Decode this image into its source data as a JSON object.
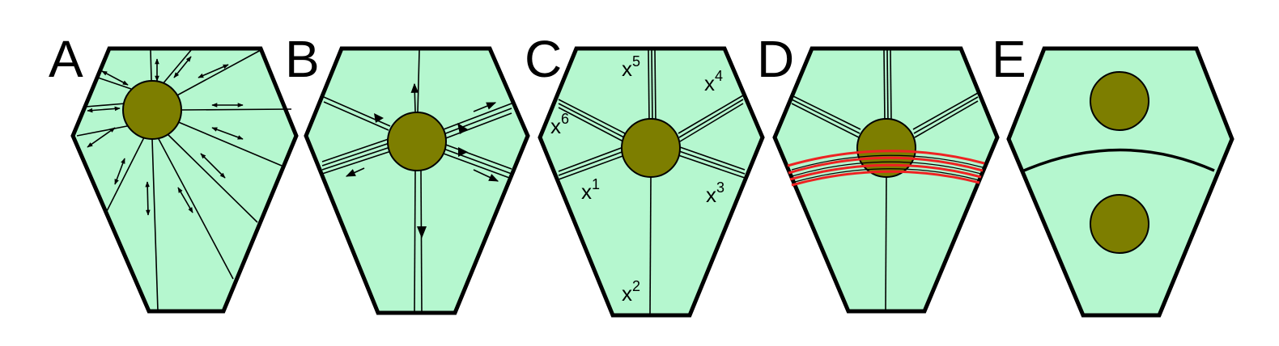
{
  "colors": {
    "cell_fill": "#b5f7cf",
    "nucleus_fill": "#7d7e00",
    "outline": "#000000",
    "preprophase_band": "#ee2222"
  },
  "panels": [
    {
      "letter": "A"
    },
    {
      "letter": "B"
    },
    {
      "letter": "C"
    },
    {
      "letter": "D"
    },
    {
      "letter": "E"
    }
  ],
  "panel_c_labels": [
    {
      "base": "x",
      "sup": "1"
    },
    {
      "base": "x",
      "sup": "2"
    },
    {
      "base": "x",
      "sup": "3"
    },
    {
      "base": "x",
      "sup": "4"
    },
    {
      "base": "x",
      "sup": "5"
    },
    {
      "base": "x",
      "sup": "6"
    }
  ],
  "icons": [
    "double-arrow-icon",
    "arrow-icon",
    "arrowhead-icon"
  ]
}
